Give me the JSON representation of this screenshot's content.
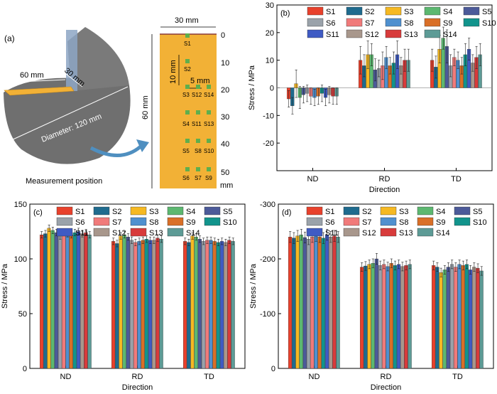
{
  "colors": {
    "S1": "#e8412c",
    "S2": "#1f6b8e",
    "S3": "#f6b922",
    "S4": "#5cb870",
    "S5": "#4c5a99",
    "S6": "#9aa2aa",
    "S7": "#f07a7a",
    "S8": "#4f90cf",
    "S9": "#d96f27",
    "S10": "#11948c",
    "S11": "#3f5bc4",
    "S12": "#a8978c",
    "S13": "#d83b3b",
    "S14": "#5d9b96",
    "plate": "#f2b136",
    "mark": "#5fae4d",
    "solid": "#6f6f6f",
    "arrow": "#4f8fc0"
  },
  "panel_a": {
    "label": "(a)",
    "dim_60": "60 mm",
    "dim_30": "30 mm",
    "diameter": "Diameter: 120 mm",
    "caption": "Measurement position",
    "strip_width": "30 mm",
    "strip_height": "60 mm",
    "step_10": "10 mm",
    "step_5": "5 mm",
    "depth_ticks": [
      "0",
      "10",
      "20",
      "30",
      "40",
      "50"
    ],
    "depth_unit": "mm",
    "points": [
      "S1",
      "S2",
      "S3",
      "S12",
      "S14",
      "S4",
      "S11",
      "S13",
      "S5",
      "S8",
      "S10",
      "S6",
      "S7",
      "S9"
    ]
  },
  "chart_data": [
    {
      "panel": "(b)",
      "type": "bar",
      "categories": [
        "ND",
        "RD",
        "TD"
      ],
      "xlabel": "Direction",
      "ylabel": "Stress / MPa",
      "ylim": [
        -30,
        30
      ],
      "yticks": [
        -20,
        -10,
        0,
        10,
        20,
        30
      ],
      "series": [
        {
          "name": "S1",
          "values": [
            -4,
            10,
            10
          ],
          "err": [
            3,
            5,
            4
          ]
        },
        {
          "name": "S2",
          "values": [
            -6.5,
            8,
            7.5
          ],
          "err": [
            3,
            4,
            4
          ]
        },
        {
          "name": "S3",
          "values": [
            1.5,
            12,
            14
          ],
          "err": [
            5,
            5,
            5
          ]
        },
        {
          "name": "S4",
          "values": [
            -3.5,
            12,
            18
          ],
          "err": [
            4,
            4,
            4
          ]
        },
        {
          "name": "S5",
          "values": [
            -2.5,
            6.5,
            15
          ],
          "err": [
            3,
            4,
            6
          ]
        },
        {
          "name": "S6",
          "values": [
            -2,
            7,
            8
          ],
          "err": [
            3,
            3,
            4
          ]
        },
        {
          "name": "S7",
          "values": [
            -3,
            8,
            11
          ],
          "err": [
            3,
            5,
            3
          ]
        },
        {
          "name": "S8",
          "values": [
            -3.5,
            11,
            10
          ],
          "err": [
            3,
            4,
            3
          ]
        },
        {
          "name": "S9",
          "values": [
            -3,
            8,
            8
          ],
          "err": [
            3,
            3,
            3
          ]
        },
        {
          "name": "S10",
          "values": [
            -2,
            9,
            12
          ],
          "err": [
            3,
            4,
            4
          ]
        },
        {
          "name": "S11",
          "values": [
            -3.5,
            12,
            14
          ],
          "err": [
            3,
            5,
            4
          ]
        },
        {
          "name": "S12",
          "values": [
            -2.5,
            8,
            9
          ],
          "err": [
            3,
            3,
            3
          ]
        },
        {
          "name": "S13",
          "values": [
            -3,
            10,
            11
          ],
          "err": [
            3,
            4,
            4
          ]
        },
        {
          "name": "S14",
          "values": [
            -3,
            10,
            12
          ],
          "err": [
            3,
            4,
            4
          ]
        }
      ]
    },
    {
      "panel": "(c)",
      "type": "bar",
      "categories": [
        "ND",
        "RD",
        "TD"
      ],
      "xlabel": "Direction",
      "ylabel": "Stress / MPa",
      "ylim": [
        0,
        150
      ],
      "yticks": [
        0,
        50,
        100,
        150
      ],
      "series": [
        {
          "name": "S1",
          "values": [
            122,
            116,
            116
          ],
          "err": [
            3,
            3,
            3
          ]
        },
        {
          "name": "S2",
          "values": [
            123,
            114,
            115
          ],
          "err": [
            3,
            3,
            3
          ]
        },
        {
          "name": "S3",
          "values": [
            128,
            121,
            121
          ],
          "err": [
            3,
            3,
            3
          ]
        },
        {
          "name": "S4",
          "values": [
            126,
            122,
            120
          ],
          "err": [
            3,
            3,
            3
          ]
        },
        {
          "name": "S5",
          "values": [
            124,
            120,
            118
          ],
          "err": [
            3,
            3,
            3
          ]
        },
        {
          "name": "S6",
          "values": [
            121,
            117,
            116
          ],
          "err": [
            3,
            3,
            3
          ]
        },
        {
          "name": "S7",
          "values": [
            124,
            115,
            117
          ],
          "err": [
            3,
            3,
            3
          ]
        },
        {
          "name": "S8",
          "values": [
            123,
            116,
            117
          ],
          "err": [
            3,
            3,
            3
          ]
        },
        {
          "name": "S9",
          "values": [
            122,
            117,
            116
          ],
          "err": [
            3,
            3,
            3
          ]
        },
        {
          "name": "S10",
          "values": [
            124,
            118,
            115
          ],
          "err": [
            3,
            3,
            3
          ]
        },
        {
          "name": "S11",
          "values": [
            125,
            117,
            116
          ],
          "err": [
            3,
            3,
            3
          ]
        },
        {
          "name": "S12",
          "values": [
            123,
            117,
            115
          ],
          "err": [
            3,
            3,
            3
          ]
        },
        {
          "name": "S13",
          "values": [
            124,
            119,
            117
          ],
          "err": [
            3,
            3,
            3
          ]
        },
        {
          "name": "S14",
          "values": [
            122,
            118,
            116
          ],
          "err": [
            3,
            3,
            3
          ]
        }
      ]
    },
    {
      "panel": "(d)",
      "type": "bar",
      "categories": [
        "ND",
        "RD",
        "TD"
      ],
      "xlabel": "Direction",
      "ylabel": "Stress / MPa",
      "ylim": [
        0,
        -300
      ],
      "yticks": [
        0,
        -100,
        -200,
        -300
      ],
      "series": [
        {
          "name": "S1",
          "values": [
            -240,
            -185,
            -188
          ],
          "err": [
            10,
            8,
            8
          ]
        },
        {
          "name": "S2",
          "values": [
            -238,
            -187,
            -185
          ],
          "err": [
            10,
            8,
            8
          ]
        },
        {
          "name": "S3",
          "values": [
            -242,
            -190,
            -175
          ],
          "err": [
            10,
            8,
            8
          ]
        },
        {
          "name": "S4",
          "values": [
            -244,
            -192,
            -180
          ],
          "err": [
            10,
            8,
            8
          ]
        },
        {
          "name": "S5",
          "values": [
            -239,
            -200,
            -185
          ],
          "err": [
            10,
            10,
            8
          ]
        },
        {
          "name": "S6",
          "values": [
            -236,
            -188,
            -190
          ],
          "err": [
            10,
            8,
            8
          ]
        },
        {
          "name": "S7",
          "values": [
            -240,
            -190,
            -185
          ],
          "err": [
            10,
            8,
            8
          ]
        },
        {
          "name": "S8",
          "values": [
            -242,
            -186,
            -190
          ],
          "err": [
            10,
            8,
            8
          ]
        },
        {
          "name": "S9",
          "values": [
            -240,
            -192,
            -188
          ],
          "err": [
            10,
            8,
            8
          ]
        },
        {
          "name": "S10",
          "values": [
            -238,
            -188,
            -190
          ],
          "err": [
            10,
            8,
            8
          ]
        },
        {
          "name": "S11",
          "values": [
            -244,
            -190,
            -180
          ],
          "err": [
            10,
            8,
            8
          ]
        },
        {
          "name": "S12",
          "values": [
            -240,
            -186,
            -185
          ],
          "err": [
            10,
            8,
            8
          ]
        },
        {
          "name": "S13",
          "values": [
            -242,
            -188,
            -183
          ],
          "err": [
            10,
            8,
            8
          ]
        },
        {
          "name": "S14",
          "values": [
            -240,
            -190,
            -178
          ],
          "err": [
            10,
            8,
            8
          ]
        }
      ]
    }
  ]
}
